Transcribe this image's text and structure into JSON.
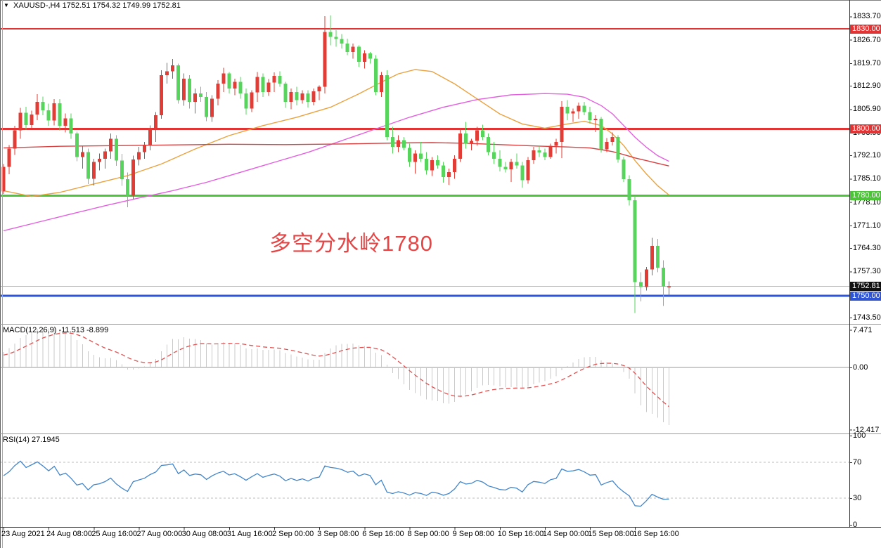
{
  "header": {
    "symbol_period": "XAUUSD-,H4",
    "ohlc_text": "1752.51 1754.32 1749.99 1752.81"
  },
  "colors": {
    "bull_candle": "#e23c36",
    "bear_candle": "#57d45c",
    "hline_red": "#e13434",
    "hline_green": "#4cc437",
    "hline_blue": "#2f55d4",
    "current_price_line": "#b4b4b4",
    "current_price_badge": "#111111",
    "ma_fast": "#e9a23f",
    "ma_mid": "#e45fe0",
    "ma_slow": "#d84040",
    "macd_hist": "#c9c9c9",
    "macd_signal": "#e05050",
    "rsi_line": "#4285c9",
    "rsi_levels": "#bdbdbd",
    "axis_text": "#000000",
    "background": "#ffffff"
  },
  "chart_data": {
    "type": "candlestick",
    "symbol": "XAUUSD-",
    "timeframe": "H4",
    "current_bar": {
      "open": 1752.51,
      "high": 1754.32,
      "low": 1749.99,
      "close": 1752.81
    },
    "annotation": {
      "text": "多空分水岭1780"
    },
    "price_axis": {
      "ticks": [
        "1833.70",
        "1826.70",
        "1819.70",
        "1812.90",
        "1805.90",
        "1798.90",
        "1792.10",
        "1785.10",
        "1778.10",
        "1771.10",
        "1764.30",
        "1757.30",
        "1743.50"
      ]
    },
    "hlines": [
      {
        "price": 1830.0,
        "label": "1830.00",
        "color": "#e13434",
        "width": 2
      },
      {
        "price": 1800.0,
        "label": "1800.00",
        "color": "#e13434",
        "width": 3
      },
      {
        "price": 1780.0,
        "label": "1780.00",
        "color": "#4cc437",
        "width": 3
      },
      {
        "price": 1750.0,
        "label": "1750.00",
        "color": "#2f55d4",
        "width": 3
      }
    ],
    "current_price": {
      "value": 1752.81,
      "label": "1752.81"
    },
    "time_axis": [
      {
        "label": "23 Aug 2021",
        "bar": 0
      },
      {
        "label": "24 Aug 08:00",
        "bar": 8
      },
      {
        "label": "25 Aug 16:00",
        "bar": 16
      },
      {
        "label": "27 Aug 00:00",
        "bar": 24
      },
      {
        "label": "30 Aug 08:00",
        "bar": 32
      },
      {
        "label": "31 Aug 16:00",
        "bar": 40
      },
      {
        "label": "2 Sep 00:00",
        "bar": 48
      },
      {
        "label": "3 Sep 08:00",
        "bar": 56
      },
      {
        "label": "6 Sep 16:00",
        "bar": 64
      },
      {
        "label": "8 Sep 00:00",
        "bar": 72
      },
      {
        "label": "9 Sep 08:00",
        "bar": 80
      },
      {
        "label": "10 Sep 16:00",
        "bar": 88
      },
      {
        "label": "14 Sep 00:00",
        "bar": 96
      },
      {
        "label": "15 Sep 08:00",
        "bar": 104
      },
      {
        "label": "16 Sep 16:00",
        "bar": 112
      }
    ],
    "bars": [
      [
        1781.3,
        1789.5,
        1780.5,
        1788.6
      ],
      [
        1788.6,
        1795.2,
        1786.4,
        1794.1
      ],
      [
        1794.1,
        1801.0,
        1792.2,
        1799.6
      ],
      [
        1799.6,
        1806.3,
        1797.1,
        1804.8
      ],
      [
        1804.8,
        1806.6,
        1799.8,
        1801.2
      ],
      [
        1801.2,
        1805.5,
        1800.1,
        1804.3
      ],
      [
        1804.3,
        1810.4,
        1802.6,
        1808.1
      ],
      [
        1808.1,
        1809.7,
        1804.1,
        1805.6
      ],
      [
        1805.6,
        1807.6,
        1800.9,
        1802.5
      ],
      [
        1802.5,
        1808.9,
        1801.1,
        1807.7
      ],
      [
        1807.7,
        1809.0,
        1799.5,
        1801.0
      ],
      [
        1801.0,
        1804.6,
        1799.0,
        1803.2
      ],
      [
        1803.2,
        1804.6,
        1797.1,
        1798.6
      ],
      [
        1798.6,
        1799.2,
        1790.3,
        1791.6
      ],
      [
        1791.6,
        1794.9,
        1788.1,
        1793.1
      ],
      [
        1793.1,
        1794.1,
        1783.5,
        1785.1
      ],
      [
        1785.1,
        1791.1,
        1783.1,
        1790.1
      ],
      [
        1790.1,
        1792.6,
        1787.6,
        1791.1
      ],
      [
        1791.1,
        1794.1,
        1788.1,
        1793.3
      ],
      [
        1793.3,
        1798.6,
        1791.1,
        1797.1
      ],
      [
        1797.1,
        1798.1,
        1789.0,
        1790.5
      ],
      [
        1790.5,
        1792.5,
        1783.0,
        1785.0
      ],
      [
        1785.0,
        1787.0,
        1776.5,
        1780.0
      ],
      [
        1780.0,
        1792.0,
        1779.0,
        1790.8
      ],
      [
        1790.8,
        1794.6,
        1789.1,
        1793.1
      ],
      [
        1793.1,
        1796.1,
        1791.1,
        1795.3
      ],
      [
        1795.3,
        1801.1,
        1793.6,
        1800.3
      ],
      [
        1800.3,
        1805.1,
        1796.1,
        1804.1
      ],
      [
        1804.1,
        1817.6,
        1803.1,
        1816.1
      ],
      [
        1816.1,
        1819.8,
        1813.6,
        1817.3
      ],
      [
        1817.3,
        1820.9,
        1815.1,
        1819.1
      ],
      [
        1819.1,
        1819.6,
        1807.6,
        1808.6
      ],
      [
        1808.6,
        1816.6,
        1807.0,
        1815.1
      ],
      [
        1815.1,
        1816.1,
        1806.1,
        1808.1
      ],
      [
        1808.1,
        1812.1,
        1804.6,
        1810.6
      ],
      [
        1810.6,
        1812.6,
        1808.1,
        1809.6
      ],
      [
        1809.6,
        1811.1,
        1802.3,
        1803.6
      ],
      [
        1803.6,
        1810.1,
        1802.1,
        1809.1
      ],
      [
        1809.1,
        1814.6,
        1807.1,
        1813.6
      ],
      [
        1813.6,
        1818.3,
        1811.1,
        1816.6
      ],
      [
        1816.6,
        1817.1,
        1810.6,
        1812.1
      ],
      [
        1812.1,
        1815.1,
        1810.1,
        1814.1
      ],
      [
        1814.1,
        1815.6,
        1809.1,
        1810.6
      ],
      [
        1810.6,
        1812.1,
        1804.3,
        1806.1
      ],
      [
        1806.1,
        1811.6,
        1805.1,
        1810.9
      ],
      [
        1810.9,
        1817.1,
        1808.1,
        1815.6
      ],
      [
        1815.6,
        1816.6,
        1809.6,
        1811.1
      ],
      [
        1811.1,
        1814.9,
        1809.9,
        1813.9
      ],
      [
        1813.9,
        1816.9,
        1811.1,
        1815.9
      ],
      [
        1815.9,
        1817.3,
        1812.6,
        1813.6
      ],
      [
        1813.6,
        1814.1,
        1806.3,
        1808.1
      ],
      [
        1808.1,
        1812.1,
        1805.9,
        1811.1
      ],
      [
        1811.1,
        1812.6,
        1807.1,
        1808.6
      ],
      [
        1808.6,
        1811.6,
        1807.6,
        1810.6
      ],
      [
        1810.6,
        1811.6,
        1806.4,
        1808.1
      ],
      [
        1808.1,
        1812.1,
        1807.1,
        1811.3
      ],
      [
        1811.3,
        1813.1,
        1808.6,
        1812.6
      ],
      [
        1812.6,
        1833.8,
        1810.6,
        1829.1
      ],
      [
        1829.1,
        1834.0,
        1825.1,
        1827.6
      ],
      [
        1827.6,
        1829.6,
        1824.6,
        1826.9
      ],
      [
        1826.9,
        1828.4,
        1824.1,
        1825.6
      ],
      [
        1825.6,
        1827.1,
        1822.1,
        1823.1
      ],
      [
        1823.1,
        1825.6,
        1821.1,
        1824.6
      ],
      [
        1824.6,
        1825.1,
        1818.6,
        1820.1
      ],
      [
        1820.1,
        1823.6,
        1818.1,
        1822.6
      ],
      [
        1822.6,
        1823.1,
        1819.6,
        1821.1
      ],
      [
        1821.1,
        1822.1,
        1810.1,
        1811.1
      ],
      [
        1811.1,
        1817.1,
        1809.6,
        1816.1
      ],
      [
        1816.1,
        1817.6,
        1796.6,
        1797.6
      ],
      [
        1797.6,
        1800.6,
        1792.6,
        1794.6
      ],
      [
        1794.6,
        1798.1,
        1793.1,
        1796.6
      ],
      [
        1796.6,
        1797.6,
        1793.6,
        1794.3
      ],
      [
        1794.3,
        1795.6,
        1788.6,
        1790.1
      ],
      [
        1790.1,
        1793.6,
        1786.6,
        1792.6
      ],
      [
        1792.6,
        1796.1,
        1790.1,
        1791.1
      ],
      [
        1791.1,
        1793.1,
        1786.3,
        1787.6
      ],
      [
        1787.6,
        1791.6,
        1785.9,
        1790.6
      ],
      [
        1790.6,
        1792.1,
        1788.1,
        1789.1
      ],
      [
        1789.1,
        1790.1,
        1783.9,
        1785.6
      ],
      [
        1785.6,
        1788.1,
        1783.3,
        1787.1
      ],
      [
        1787.1,
        1792.1,
        1785.1,
        1791.1
      ],
      [
        1791.1,
        1800.3,
        1790.1,
        1798.6
      ],
      [
        1798.6,
        1802.1,
        1794.1,
        1795.6
      ],
      [
        1795.6,
        1797.1,
        1793.6,
        1796.4
      ],
      [
        1796.4,
        1800.6,
        1795.1,
        1799.6
      ],
      [
        1799.6,
        1801.3,
        1796.6,
        1797.6
      ],
      [
        1797.6,
        1798.6,
        1792.1,
        1793.1
      ],
      [
        1793.1,
        1796.1,
        1789.6,
        1791.1
      ],
      [
        1791.1,
        1793.6,
        1787.3,
        1788.6
      ],
      [
        1788.6,
        1790.1,
        1786.9,
        1787.9
      ],
      [
        1787.9,
        1791.1,
        1784.1,
        1790.1
      ],
      [
        1790.1,
        1792.6,
        1788.1,
        1789.1
      ],
      [
        1789.1,
        1790.1,
        1782.4,
        1784.6
      ],
      [
        1784.6,
        1791.6,
        1783.6,
        1790.6
      ],
      [
        1790.6,
        1794.6,
        1789.6,
        1793.6
      ],
      [
        1793.6,
        1795.1,
        1791.6,
        1792.9
      ],
      [
        1792.9,
        1794.1,
        1790.6,
        1791.6
      ],
      [
        1791.6,
        1795.6,
        1791.1,
        1794.9
      ],
      [
        1794.9,
        1797.1,
        1792.6,
        1796.1
      ],
      [
        1796.1,
        1808.3,
        1791.3,
        1806.6
      ],
      [
        1806.6,
        1808.6,
        1802.6,
        1804.6
      ],
      [
        1804.6,
        1806.1,
        1802.1,
        1805.3
      ],
      [
        1805.3,
        1807.9,
        1803.1,
        1806.9
      ],
      [
        1806.9,
        1808.1,
        1804.1,
        1805.1
      ],
      [
        1805.1,
        1806.6,
        1801.6,
        1802.6
      ],
      [
        1802.6,
        1804.1,
        1799.1,
        1803.1
      ],
      [
        1803.1,
        1803.6,
        1792.9,
        1793.9
      ],
      [
        1793.9,
        1797.3,
        1793.1,
        1796.1
      ],
      [
        1796.1,
        1798.9,
        1795.1,
        1797.6
      ],
      [
        1797.6,
        1798.1,
        1789.9,
        1790.8
      ],
      [
        1790.8,
        1791.6,
        1784.1,
        1784.9
      ],
      [
        1784.9,
        1786.1,
        1777.1,
        1778.6
      ],
      [
        1778.6,
        1779.9,
        1744.8,
        1754.1
      ],
      [
        1754.1,
        1757.1,
        1748.3,
        1752.6
      ],
      [
        1752.6,
        1758.6,
        1751.6,
        1757.9
      ],
      [
        1757.9,
        1767.4,
        1756.1,
        1764.9
      ],
      [
        1764.9,
        1767.1,
        1757.1,
        1758.4
      ],
      [
        1758.4,
        1760.6,
        1746.9,
        1752.7
      ],
      [
        1752.51,
        1754.32,
        1749.99,
        1752.81
      ]
    ],
    "moving_averages": [
      {
        "name": "fast-ma",
        "color": "#e9a23f",
        "points": [
          [
            0,
            1781.5
          ],
          [
            5,
            1779.8
          ],
          [
            10,
            1781.0
          ],
          [
            16,
            1783.5
          ],
          [
            22,
            1786.0
          ],
          [
            28,
            1789.5
          ],
          [
            34,
            1794.0
          ],
          [
            40,
            1798.0
          ],
          [
            46,
            1801.0
          ],
          [
            52,
            1803.5
          ],
          [
            58,
            1806.5
          ],
          [
            63,
            1810.5
          ],
          [
            67,
            1814.0
          ],
          [
            70,
            1816.5
          ],
          [
            73,
            1817.8
          ],
          [
            76,
            1817.2
          ],
          [
            80,
            1813.5
          ],
          [
            84,
            1809.0
          ],
          [
            88,
            1804.5
          ],
          [
            92,
            1801.5
          ],
          [
            96,
            1800.2
          ],
          [
            100,
            1801.5
          ],
          [
            103,
            1802.3
          ],
          [
            106,
            1801.0
          ],
          [
            108,
            1798.5
          ],
          [
            110,
            1795.0
          ],
          [
            112,
            1790.5
          ],
          [
            114,
            1786.5
          ],
          [
            116,
            1783.0
          ],
          [
            118,
            1780.2
          ]
        ]
      },
      {
        "name": "mid-ma",
        "color": "#e45fe0",
        "points": [
          [
            0,
            1769.5
          ],
          [
            6,
            1772.0
          ],
          [
            12,
            1774.5
          ],
          [
            18,
            1777.0
          ],
          [
            24,
            1779.3
          ],
          [
            30,
            1781.5
          ],
          [
            36,
            1784.0
          ],
          [
            42,
            1787.0
          ],
          [
            48,
            1790.0
          ],
          [
            54,
            1793.0
          ],
          [
            60,
            1796.5
          ],
          [
            66,
            1800.0
          ],
          [
            72,
            1803.5
          ],
          [
            78,
            1806.5
          ],
          [
            84,
            1808.8
          ],
          [
            90,
            1810.2
          ],
          [
            96,
            1810.6
          ],
          [
            100,
            1810.4
          ],
          [
            103,
            1809.5
          ],
          [
            106,
            1807.0
          ],
          [
            108,
            1804.5
          ],
          [
            110,
            1801.0
          ],
          [
            112,
            1797.5
          ],
          [
            114,
            1794.5
          ],
          [
            116,
            1792.0
          ],
          [
            118,
            1790.3
          ]
        ]
      },
      {
        "name": "slow-ma",
        "color": "#d84040",
        "points": [
          [
            0,
            1794.3
          ],
          [
            10,
            1794.8
          ],
          [
            20,
            1795.0
          ],
          [
            30,
            1795.2
          ],
          [
            40,
            1795.4
          ],
          [
            50,
            1795.3
          ],
          [
            60,
            1795.5
          ],
          [
            70,
            1795.8
          ],
          [
            76,
            1795.9
          ],
          [
            82,
            1795.7
          ],
          [
            88,
            1795.3
          ],
          [
            94,
            1794.9
          ],
          [
            100,
            1794.6
          ],
          [
            104,
            1794.3
          ],
          [
            106,
            1793.8
          ],
          [
            108,
            1793.2
          ],
          [
            110,
            1792.3
          ],
          [
            112,
            1791.3
          ],
          [
            114,
            1790.5
          ],
          [
            116,
            1789.7
          ],
          [
            118,
            1788.9
          ]
        ]
      }
    ],
    "indicators": {
      "macd": {
        "label": "MACD(12,26,9) -11.513 -8.899",
        "fast": 12,
        "slow": 26,
        "signal": 9,
        "hist_last": -11.513,
        "signal_last": -8.899,
        "axis_ticks": [
          "7.471",
          "0.00",
          "-12.417"
        ]
      },
      "rsi": {
        "label": "RSI(14) 27.1945",
        "period": 14,
        "last": 27.1945,
        "axis_ticks": [
          "100",
          "70",
          "30",
          "0"
        ],
        "levels": [
          70,
          30
        ]
      }
    }
  }
}
